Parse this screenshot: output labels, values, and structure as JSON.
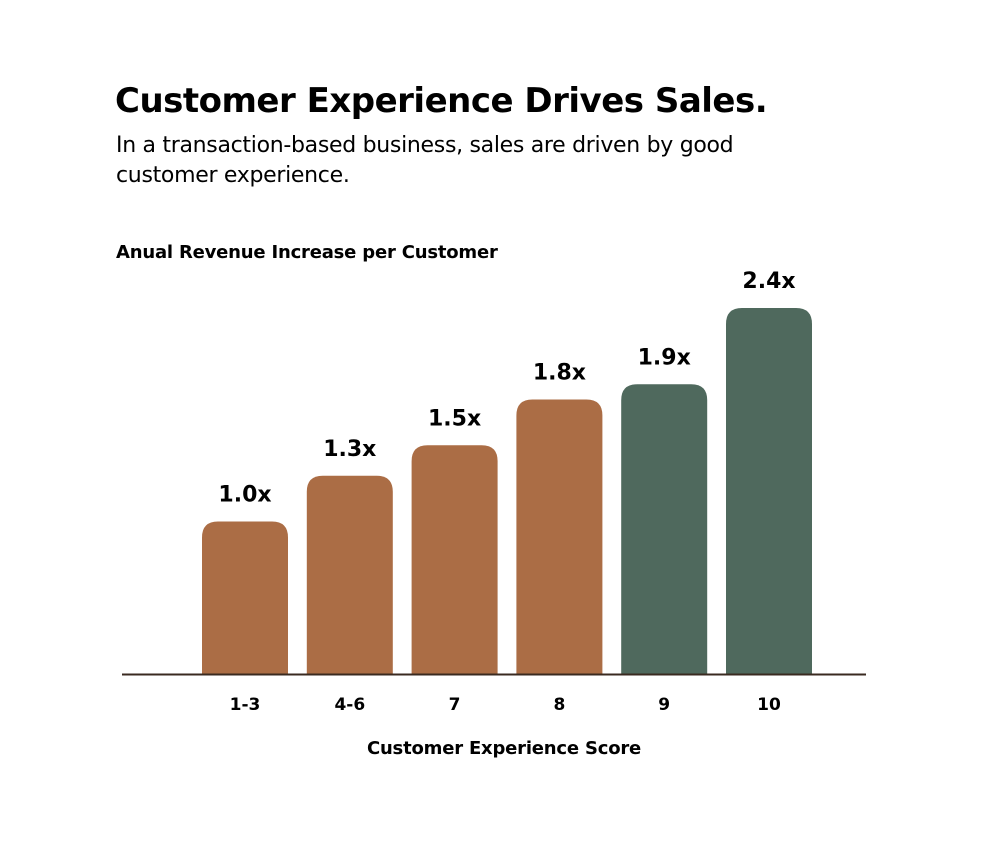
{
  "chart_data": {
    "type": "bar",
    "title": "Customer Experience Drives Sales.",
    "subtitle": "In a transaction-based business, sales are driven by good customer experience.",
    "ylabel": "Anual Revenue Increase per Customer",
    "xlabel": "Customer Experience Score",
    "categories": [
      "1-3",
      "4-6",
      "7",
      "8",
      "9",
      "10"
    ],
    "values": [
      1.0,
      1.3,
      1.5,
      1.8,
      1.9,
      2.4
    ],
    "data_labels": [
      "1.0x",
      "1.3x",
      "1.5x",
      "1.8x",
      "1.9x",
      "2.4x"
    ],
    "bar_colors": [
      "#ab6d45",
      "#ab6d45",
      "#ab6d45",
      "#ab6d45",
      "#4f695d",
      "#4f695d"
    ],
    "axis_color": "#3a2a20",
    "grid": false,
    "legend": "none"
  }
}
